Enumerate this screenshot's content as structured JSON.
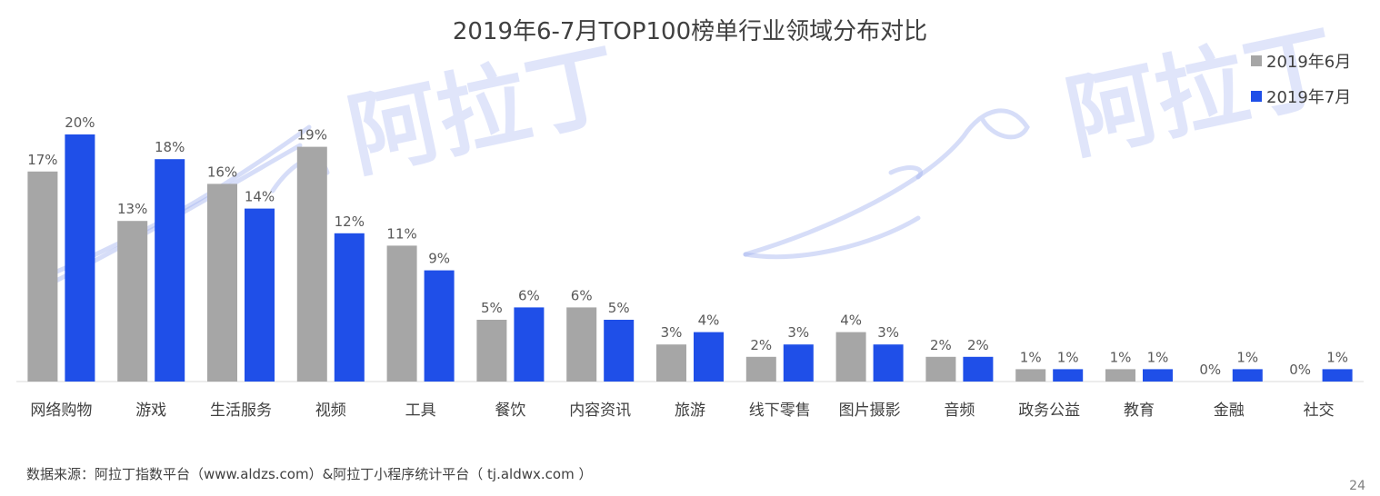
{
  "chart_data": {
    "type": "bar",
    "title": "2019年6-7月TOP100榜单行业领域分布对比",
    "categories": [
      "网络购物",
      "游戏",
      "生活服务",
      "视频",
      "工具",
      "餐饮",
      "内容资讯",
      "旅游",
      "线下零售",
      "图片摄影",
      "音频",
      "政务公益",
      "教育",
      "金融",
      "社交"
    ],
    "series": [
      {
        "name": "2019年6月",
        "color": "#a6a6a6",
        "values": [
          17,
          13,
          16,
          19,
          11,
          5,
          6,
          3,
          2,
          4,
          2,
          1,
          1,
          0,
          0
        ],
        "labels": [
          "17%",
          "13%",
          "16%",
          "19%",
          "11%",
          "5%",
          "6%",
          "3%",
          "2%",
          "4%",
          "2%",
          "1%",
          "1%",
          "0%",
          "0%"
        ]
      },
      {
        "name": "2019年7月",
        "color": "#1f4fe8",
        "values": [
          20,
          18,
          14,
          12,
          9,
          6,
          5,
          4,
          3,
          3,
          2,
          1,
          1,
          1,
          1
        ],
        "labels": [
          "20%",
          "18%",
          "14%",
          "12%",
          "9%",
          "6%",
          "5%",
          "4%",
          "3%",
          "3%",
          "2%",
          "1%",
          "1%",
          "1%",
          "1%"
        ]
      }
    ],
    "ylim": [
      0,
      20
    ],
    "legend_position": "top-right",
    "grid": false
  },
  "footer": {
    "source": "数据来源：阿拉丁指数平台（www.aldzs.com）&阿拉丁小程序统计平台（  tj.aldwx.com  ）",
    "page_number": "24"
  },
  "watermark": {
    "text": "阿拉丁",
    "color": "#a5b4f0"
  }
}
